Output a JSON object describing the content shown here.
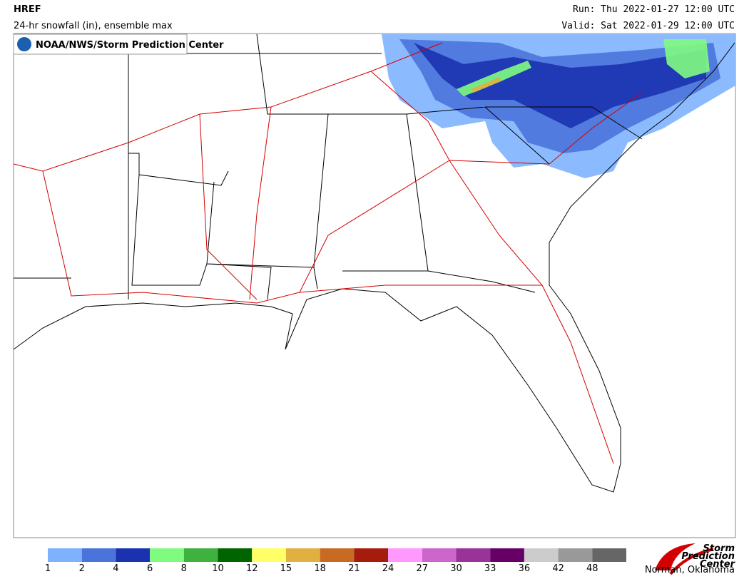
{
  "header": {
    "model": "HREF",
    "field": "24-hr snowfall (in), ensemble max",
    "run": "Run: Thu 2022-01-27 12:00 UTC",
    "valid": "Valid: Sat 2022-01-29 12:00 UTC"
  },
  "credit": "NOAA/NWS/Storm Prediction Center",
  "legend": {
    "levels": [
      1,
      2,
      4,
      6,
      8,
      10,
      12,
      15,
      18,
      21,
      24,
      27,
      30,
      33,
      36,
      42,
      48
    ],
    "colors": [
      "#7fb2fe",
      "#4a74db",
      "#1b32b0",
      "#7ffc7f",
      "#3fb13f",
      "#006400",
      "#ffff66",
      "#e0b040",
      "#c86a23",
      "#a51c0c",
      "#ff99ff",
      "#cc66cc",
      "#993399",
      "#660066",
      "#cccccc",
      "#999999",
      "#666666"
    ]
  },
  "logo": {
    "lines": [
      "Storm",
      "Prediction",
      "Center"
    ],
    "sub": "Norman, Oklahoma"
  }
}
